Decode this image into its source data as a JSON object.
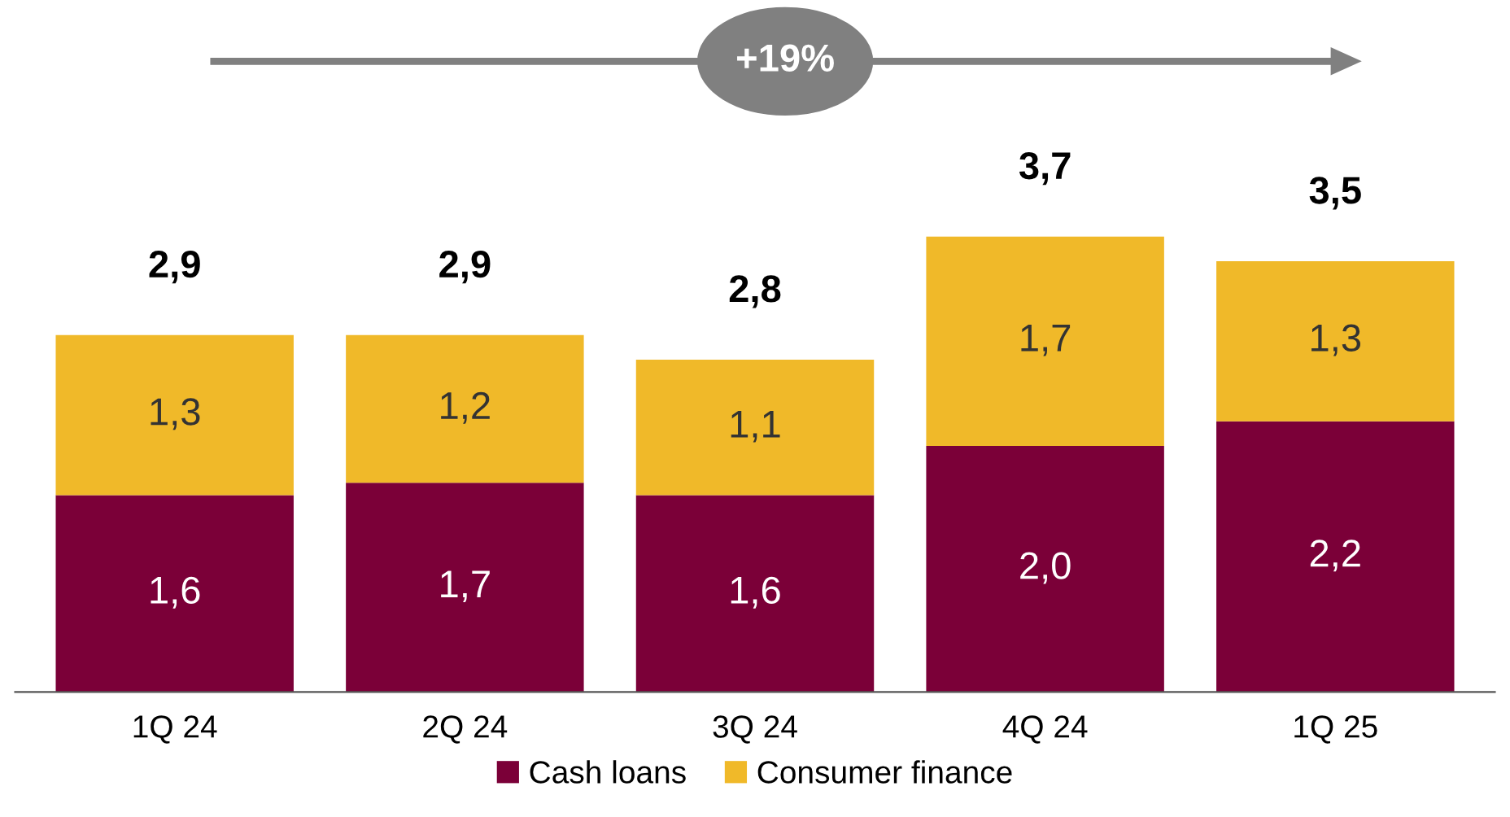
{
  "chart_data": {
    "type": "bar",
    "stacked": true,
    "categories": [
      "1Q 24",
      "2Q 24",
      "3Q 24",
      "4Q 24",
      "1Q 25"
    ],
    "series": [
      {
        "name": "Cash loans",
        "color": "#7b0038",
        "values": [
          1.6,
          1.7,
          1.6,
          2.0,
          2.2
        ],
        "value_labels": [
          "1,6",
          "1,7",
          "1,6",
          "2,0",
          "2,2"
        ]
      },
      {
        "name": "Consumer finance",
        "color": "#f0b929",
        "values": [
          1.3,
          1.2,
          1.1,
          1.7,
          1.3
        ],
        "value_labels": [
          "1,3",
          "1,2",
          "1,1",
          "1,7",
          "1,3"
        ]
      }
    ],
    "totals": [
      "2,9",
      "2,9",
      "2,8",
      "3,7",
      "3,5"
    ],
    "annotations": [
      "+19%"
    ],
    "legend": "bottom",
    "grid": false
  }
}
